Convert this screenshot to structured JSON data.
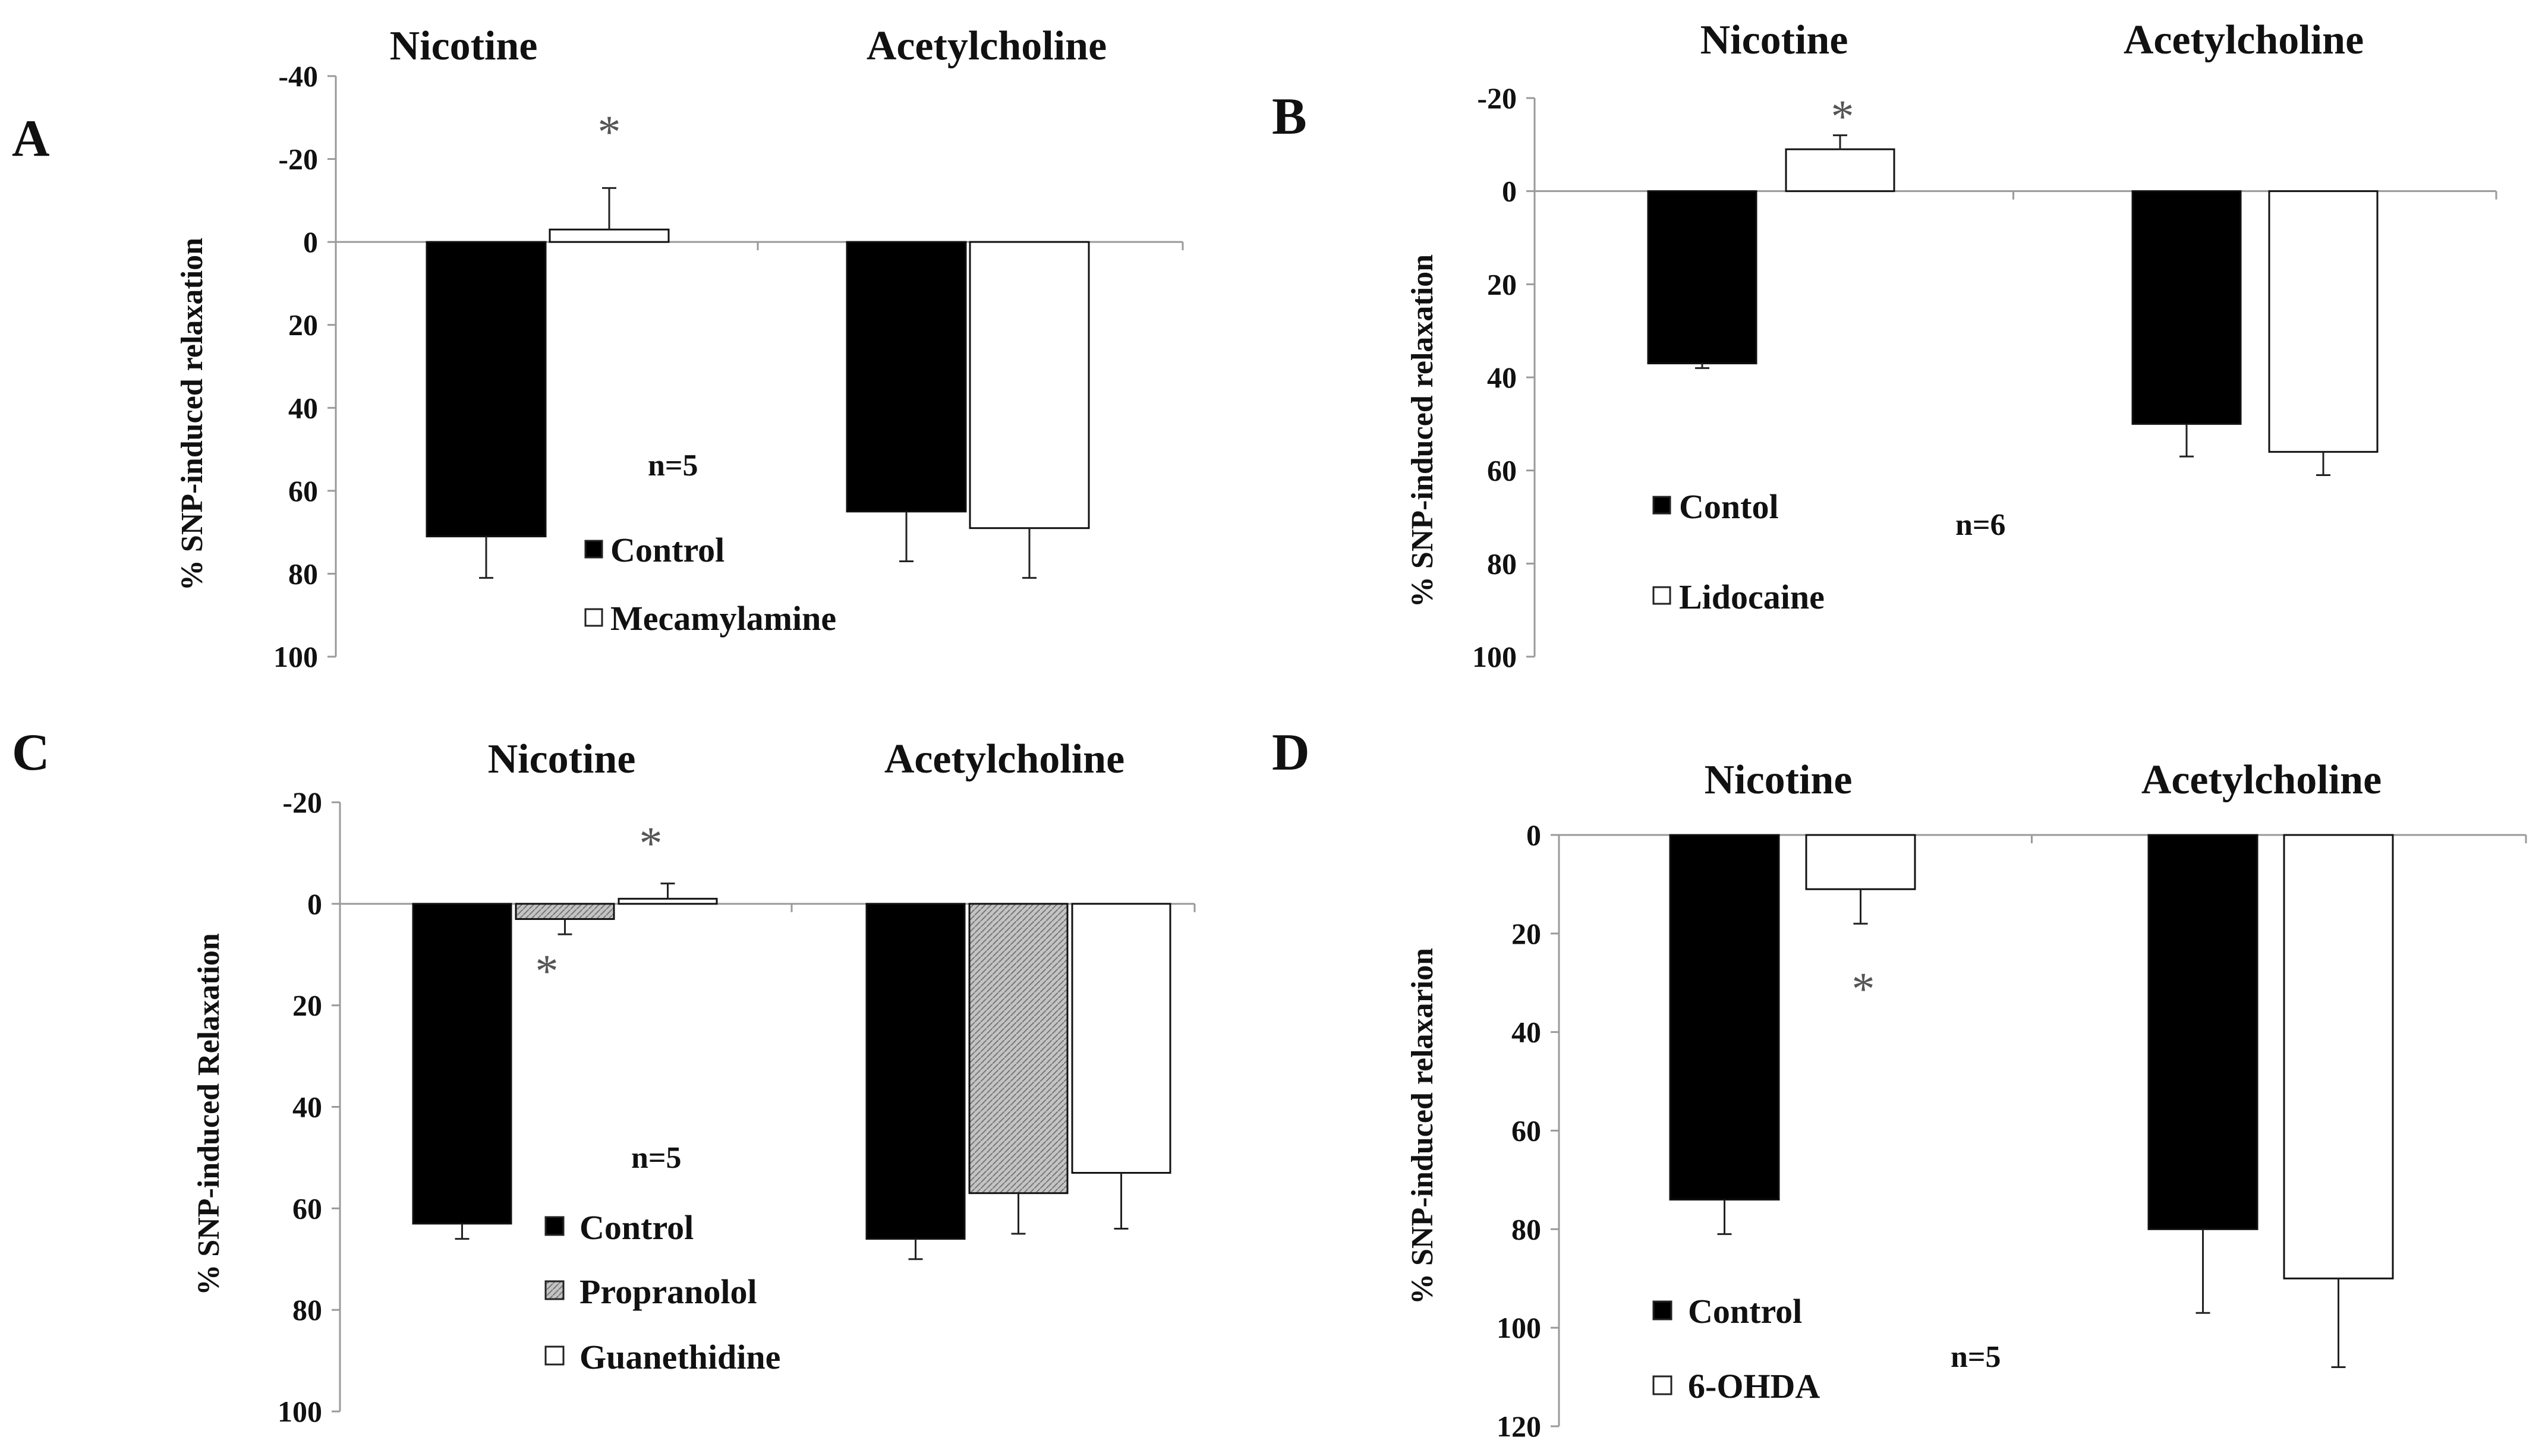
{
  "colors": {
    "control": "#000000",
    "treatment": "#ffffff",
    "propranolol": "#b9b9b9",
    "axis": "#9a9a9a",
    "error": "#222222",
    "star": "#555555"
  },
  "chart_data": [
    {
      "panel": "A",
      "type": "bar",
      "inverted_y": true,
      "ylabel": "% SNP-induced relaxation",
      "ylim": [
        -40,
        100
      ],
      "ticks": [
        -40,
        -20,
        0,
        20,
        40,
        60,
        80,
        100
      ],
      "tick_labels": [
        "-40",
        "-20",
        "0",
        "20",
        "40",
        "60",
        "80",
        "100"
      ],
      "categories": [
        "Nicotine",
        "Acetylcholine"
      ],
      "series": [
        {
          "name": "Control",
          "fill": "solid",
          "values": [
            71,
            65
          ],
          "errors": [
            10,
            12
          ]
        },
        {
          "name": "Mecamylamine",
          "fill": "open",
          "values": [
            -3,
            69
          ],
          "errors": [
            10,
            12
          ]
        }
      ],
      "annotations": {
        "n": "n=5",
        "significance": [
          {
            "label": "*",
            "category": 0,
            "series": 1
          }
        ]
      },
      "legend": [
        "Control",
        "Mecamylamine"
      ]
    },
    {
      "panel": "B",
      "type": "bar",
      "inverted_y": true,
      "ylabel": "% SNP-induced relaxation",
      "ylim": [
        -20,
        100
      ],
      "ticks": [
        -20,
        0,
        20,
        40,
        60,
        80,
        100
      ],
      "tick_labels": [
        "-20",
        "0",
        "20",
        "40",
        "60",
        "80",
        "100"
      ],
      "categories": [
        "Nicotine",
        "Acetylcholine"
      ],
      "series": [
        {
          "name": "Contol",
          "fill": "solid",
          "values": [
            37,
            50
          ],
          "errors": [
            1,
            7
          ]
        },
        {
          "name": "Lidocaine",
          "fill": "open",
          "values": [
            -9,
            56
          ],
          "errors": [
            3,
            5
          ]
        }
      ],
      "annotations": {
        "n": "n=6",
        "significance": [
          {
            "label": "*",
            "category": 0,
            "series": 1
          }
        ]
      },
      "legend": [
        "Contol",
        "Lidocaine"
      ]
    },
    {
      "panel": "C",
      "type": "bar",
      "inverted_y": true,
      "ylabel": "% SNP-induced Relaxation",
      "ylim": [
        -20,
        100
      ],
      "ticks": [
        -20,
        0,
        20,
        40,
        60,
        80,
        100
      ],
      "tick_labels": [
        "-20",
        "0",
        "20",
        "40",
        "60",
        "80",
        "100"
      ],
      "categories": [
        "Nicotine",
        "Acetylcholine"
      ],
      "series": [
        {
          "name": "Control",
          "fill": "solid",
          "values": [
            63,
            66
          ],
          "errors": [
            3,
            4
          ]
        },
        {
          "name": "Propranolol",
          "fill": "hatched",
          "values": [
            3,
            57
          ],
          "errors": [
            3,
            8
          ]
        },
        {
          "name": "Guanethidine",
          "fill": "open",
          "values": [
            -1,
            53
          ],
          "errors": [
            3,
            11
          ]
        }
      ],
      "annotations": {
        "n": "n=5",
        "significance": [
          {
            "label": "*",
            "category": 0,
            "series": 1
          },
          {
            "label": "*",
            "category": 0,
            "series": 2
          }
        ]
      },
      "legend": [
        "Control",
        "Propranolol",
        "Guanethidine"
      ]
    },
    {
      "panel": "D",
      "type": "bar",
      "inverted_y": true,
      "ylabel": "% SNP-induced relaxarion",
      "ylim": [
        0,
        120
      ],
      "ticks": [
        0,
        20,
        40,
        60,
        80,
        100,
        120
      ],
      "tick_labels": [
        "0",
        "20",
        "40",
        "60",
        "80",
        "100",
        "120"
      ],
      "categories": [
        "Nicotine",
        "Acetylcholine"
      ],
      "series": [
        {
          "name": "Control",
          "fill": "solid",
          "values": [
            74,
            80
          ],
          "errors": [
            7,
            17
          ]
        },
        {
          "name": "6-OHDA",
          "fill": "open",
          "values": [
            11,
            90
          ],
          "errors": [
            7,
            18
          ]
        }
      ],
      "annotations": {
        "n": "n=5",
        "significance": [
          {
            "label": "*",
            "category": 0,
            "series": 1
          }
        ]
      },
      "legend": [
        "Control",
        "6-OHDA"
      ]
    }
  ]
}
